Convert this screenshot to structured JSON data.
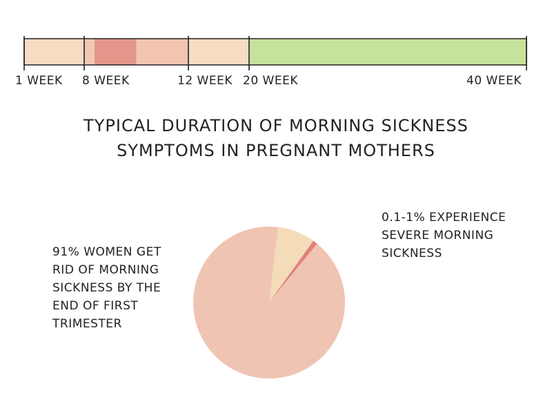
{
  "chart_data": [
    {
      "type": "bar",
      "orientation": "horizontal-timeline",
      "axis_unit": "week",
      "xlim": [
        1,
        40
      ],
      "ticks": [
        {
          "value": 1,
          "label": "1 WEEK"
        },
        {
          "value": 8,
          "label": "8 WEEK"
        },
        {
          "value": 12,
          "label": "12 WEEK"
        },
        {
          "value": 20,
          "label": "20 WEEK"
        },
        {
          "value": 40,
          "label": "40 WEEK"
        }
      ],
      "segments": [
        {
          "start": 1,
          "end": 8,
          "color": "#f5dcc3"
        },
        {
          "start": 8,
          "end": 8.4,
          "color": "#f0c8b4"
        },
        {
          "start": 8.4,
          "end": 10,
          "color": "#e4968a"
        },
        {
          "start": 10,
          "end": 12,
          "color": "#f2c4b2"
        },
        {
          "start": 12,
          "end": 20,
          "color": "#f5dcc3"
        },
        {
          "start": 20,
          "end": 40,
          "color": "#c6e39c"
        }
      ],
      "title": "TYPICAL DURATION OF MORNING SICKNESS\nSYMPTOMS IN PREGNANT MOTHERS"
    },
    {
      "type": "pie",
      "slices": [
        {
          "value": 91,
          "color": "#f0c4b2"
        },
        {
          "value": 1,
          "color": "#e0827c"
        },
        {
          "value": 8,
          "color": "#f3dcb7"
        }
      ],
      "annotations": [
        "91% WOMEN GET\nRID OF MORNING\nSICKNESS BY THE\nEND OF FIRST\nTRIMESTER",
        "0.1-1% EXPERIENCE\nSEVERE MORNING\nSICKNESS"
      ]
    }
  ],
  "colors": {
    "outline": "#222222",
    "ticks": "#222222"
  }
}
